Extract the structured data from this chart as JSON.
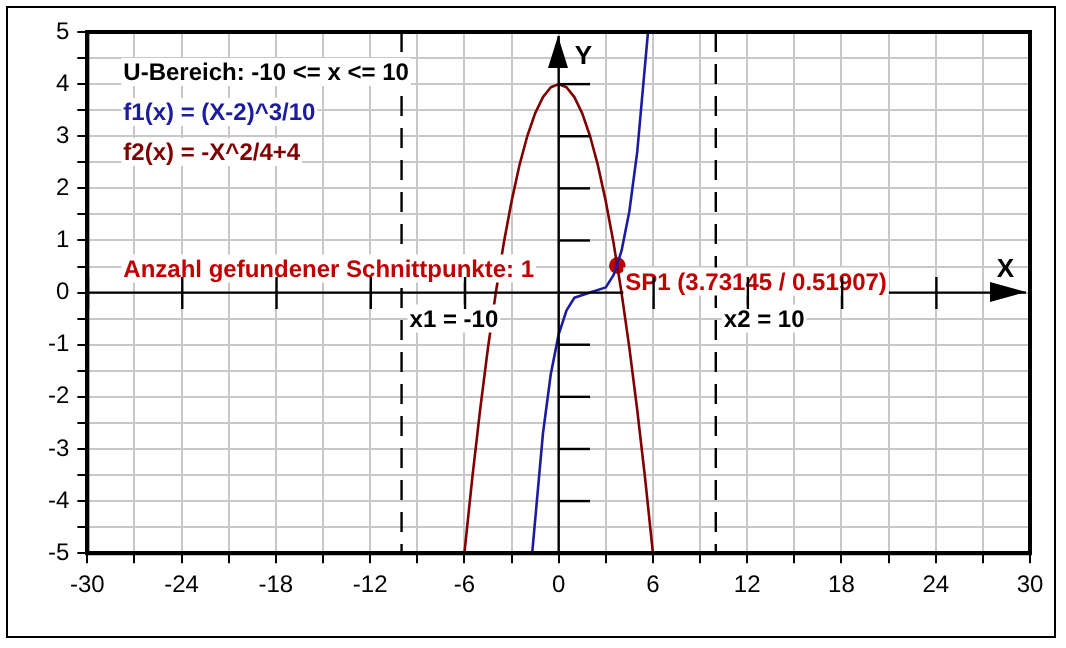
{
  "chart_data": {
    "type": "line",
    "xlabel": "X",
    "ylabel": "Y",
    "xlim": [
      -30,
      30
    ],
    "ylim": [
      -5,
      5
    ],
    "xticks": [
      -30,
      {
        "value": -27,
        "label": null
      },
      -24,
      {
        "value": -21,
        "label": null
      },
      -18,
      {
        "value": -15,
        "label": null
      },
      -12,
      {
        "value": -9,
        "label": null
      },
      -6,
      {
        "value": -3,
        "label": null
      },
      0,
      {
        "value": 3,
        "label": null
      },
      6,
      {
        "value": 9,
        "label": null
      },
      12,
      {
        "value": 15,
        "label": null
      },
      18,
      {
        "value": 21,
        "label": null
      },
      24,
      {
        "value": 27,
        "label": null
      },
      30
    ],
    "yticks": [
      -5,
      {
        "value": -4.5,
        "label": null
      },
      -4,
      {
        "value": -3.5,
        "label": null
      },
      -3,
      {
        "value": -2.5,
        "label": null
      },
      -2,
      {
        "value": -1.5,
        "label": null
      },
      -1,
      {
        "value": -0.5,
        "label": null
      },
      0,
      {
        "value": 0.5,
        "label": null
      },
      1,
      {
        "value": 1.5,
        "label": null
      },
      2,
      {
        "value": 2.5,
        "label": null
      },
      3,
      {
        "value": 3.5,
        "label": null
      },
      4,
      {
        "value": 4.5,
        "label": null
      },
      5
    ],
    "grid": true,
    "legend": false,
    "marker": "none",
    "line_style": "solid",
    "series": [
      {
        "name": "f1(x) = (X-2)^3/10",
        "color": "#1c1ca0",
        "x": [
          -1.68,
          -1,
          -0.5,
          0,
          0.5,
          1,
          2,
          3,
          3.5,
          4,
          4.5,
          5,
          5.68
        ],
        "values": [
          -4.98,
          -2.7,
          -1.56,
          -0.8,
          -0.34,
          -0.1,
          0,
          0.1,
          0.34,
          0.8,
          1.56,
          2.7,
          4.98
        ]
      },
      {
        "name": "f2(x) = -X^2/4+4",
        "color": "#800000",
        "x": [
          -6,
          -5.5,
          -5,
          -4.5,
          -4,
          -3.5,
          -3,
          -2.5,
          -2,
          -1.5,
          -1,
          -0.5,
          0,
          0.5,
          1,
          1.5,
          2,
          2.5,
          3,
          3.5,
          4,
          4.5,
          5,
          5.5,
          6
        ],
        "values": [
          -5,
          -3.56,
          -2.25,
          -1.06,
          0,
          0.94,
          1.75,
          2.44,
          3,
          3.44,
          3.75,
          3.94,
          4,
          3.94,
          3.75,
          3.44,
          3,
          2.44,
          1.75,
          0.94,
          0,
          -1.06,
          -2.25,
          -3.56,
          -5
        ]
      },
      {
        "type": "scatter",
        "color": "#c00000",
        "marker": "circle",
        "x": [
          3.73145
        ],
        "values": [
          0.51907
        ]
      }
    ],
    "ref_lines": [
      {
        "axis": "x",
        "value": -10,
        "label": "x1 = -10",
        "color": "#000000",
        "line_style": "dashed"
      },
      {
        "axis": "x",
        "value": 10,
        "label": "x2 = 10",
        "color": "#000000",
        "line_style": "dashed"
      }
    ],
    "annotations": [
      "U-Bereich: -10 <= x <= 10",
      "Anzahl gefundener Schnittpunkte: 1",
      {
        "text": "SP1 (3.73145 / 0.51907)",
        "x": 3.73145,
        "y": 0.51907
      }
    ]
  }
}
